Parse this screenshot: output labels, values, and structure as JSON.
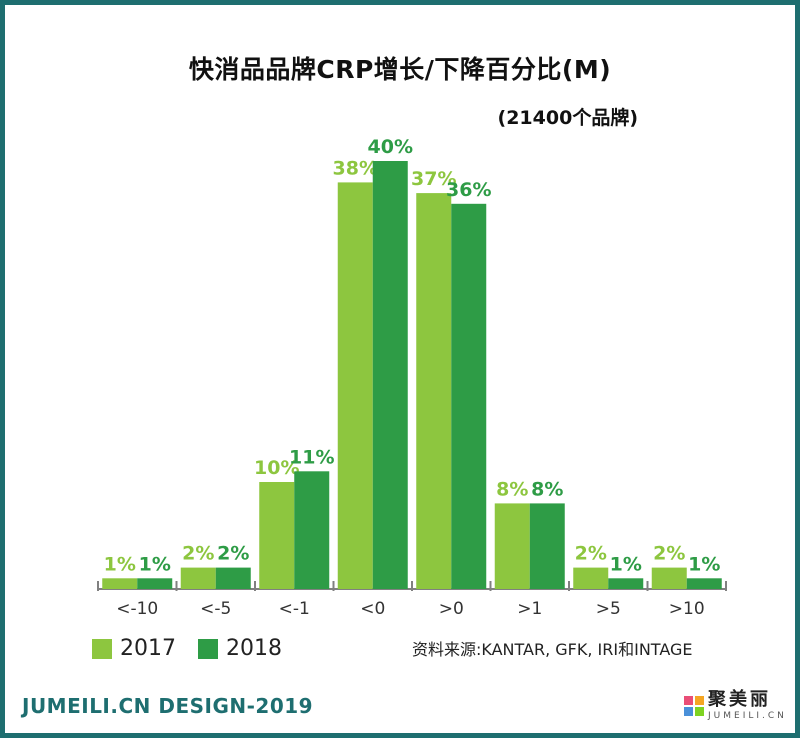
{
  "header": {
    "title": "快消品品牌CRP增长/下降百分比(M)",
    "subtitle": "(21400个品牌)"
  },
  "source_note": "资料来源:KANTAR, GFK, IRI和INTAGE",
  "footer": {
    "brand_text": "JUMEILI.CN DESIGN-2019",
    "logo_cn": "聚美丽",
    "logo_en": "JUMEILI.CN"
  },
  "colors": {
    "frame": "#1e6e70",
    "series_2017": "#8dc63f",
    "series_2018": "#2e9c46",
    "axis": "#808080"
  },
  "chart_data": {
    "type": "bar",
    "title": "快消品品牌CRP增长/下降百分比(M)",
    "subtitle": "(21400个品牌)",
    "categories": [
      "<-10",
      "<-5",
      "<-1",
      "<0",
      ">0",
      ">1",
      ">5",
      ">10"
    ],
    "series": [
      {
        "name": "2017",
        "values": [
          1,
          2,
          10,
          38,
          37,
          8,
          2,
          2
        ],
        "labels": [
          "1%",
          "2%",
          "10%",
          "38%",
          "37%",
          "8%",
          "2%",
          "2%"
        ]
      },
      {
        "name": "2018",
        "values": [
          1,
          2,
          11,
          40,
          36,
          8,
          1,
          1
        ],
        "labels": [
          "1%",
          "2%",
          "11%",
          "40%",
          "36%",
          "8%",
          "1%",
          "1%"
        ]
      }
    ],
    "unit": "%",
    "ylim": [
      0,
      40
    ],
    "legend": "bottom-left",
    "grid": false
  }
}
